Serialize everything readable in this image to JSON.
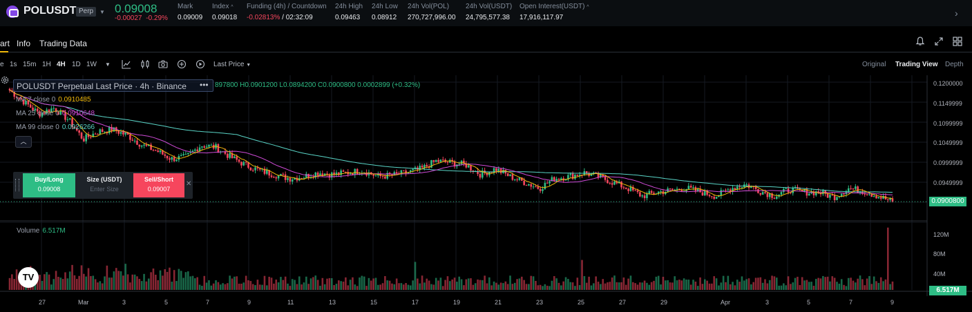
{
  "colors": {
    "up": "#2ebd85",
    "down": "#f6465d",
    "ma7": "#f0b90b",
    "ma25": "#d04bd8",
    "ma99": "#5ad6c8",
    "bg": "#000000"
  },
  "ticker": {
    "symbol": "POLUSDT",
    "badge": "Perp",
    "last_price": "0.09008",
    "change": "-0.00027",
    "change_pct": "-0.29%",
    "stats": [
      {
        "label": "Mark",
        "value": "0.09009",
        "has_caret": false
      },
      {
        "label": "Index",
        "value": "0.09018",
        "has_caret": true
      },
      {
        "label": "Funding (4h) / Countdown",
        "value_neg": "-0.02813%",
        "value": " / 02:32:09",
        "has_caret": false
      },
      {
        "label": "24h High",
        "value": "0.09463",
        "has_caret": false
      },
      {
        "label": "24h Low",
        "value": "0.08912",
        "has_caret": false
      },
      {
        "label": "24h Vol(POL)",
        "value": "270,727,996.00",
        "has_caret": false
      },
      {
        "label": "24h Vol(USDT)",
        "value": "24,795,577.38",
        "has_caret": false
      },
      {
        "label": "Open Interest(USDT)",
        "value": "17,916,117.97",
        "has_caret": true
      }
    ]
  },
  "subtabs": [
    "art",
    "Info",
    "Trading Data"
  ],
  "toolbar": {
    "timeframes": [
      "e",
      "1s",
      "15m",
      "1H",
      "4H",
      "1D",
      "1W"
    ],
    "active_timeframe": "4H",
    "price_type": "Last Price",
    "views": [
      "Original",
      "Trading View",
      "Depth"
    ],
    "active_view": "Trading View"
  },
  "legend": {
    "title": "POLUSDT Perpetual Last Price · 4h · Binance",
    "dots": "•••",
    "ohlc": "897800  H0.0901200  L0.0894200  C0.0900800  0.0002899 (+0.32%)",
    "ma": [
      {
        "label": "MA 7 close 0",
        "value": "0.0910485"
      },
      {
        "label": "MA 25 close 0",
        "value": "0.0910648"
      },
      {
        "label": "MA 99 close 0",
        "value": "0.0926266"
      }
    ]
  },
  "order_panel": {
    "buy_label": "Buy/Long",
    "buy_price": "0.09008",
    "size_label": "Size (USDT)",
    "size_placeholder": "Enter Size",
    "sell_label": "Sell/Short",
    "sell_price": "0.09007"
  },
  "volume": {
    "label": "Volume",
    "value": "6.517M"
  },
  "price_axis": [
    "0.1200000",
    "0.1149999",
    "0.1099999",
    "0.1049999",
    "0.0999999",
    "0.0949999"
  ],
  "current_price_tag": "0.0900800",
  "volume_axis": [
    "120M",
    "80M",
    "40M"
  ],
  "volume_tag": "6.517M",
  "date_axis": [
    "27",
    "Mar",
    "3",
    "5",
    "7",
    "9",
    "11",
    "13",
    "15",
    "17",
    "19",
    "21",
    "23",
    "25",
    "27",
    "29",
    "Apr",
    "3",
    "5",
    "7",
    "9"
  ],
  "tv_logo": "TV",
  "chart_data": {
    "type": "candlestick",
    "title": "POLUSDT Perpetual Last Price · 4h · Binance",
    "interval": "4h",
    "y_range": [
      0.085,
      0.122
    ],
    "volume_range_m": [
      0,
      140
    ],
    "anchor_closes": [
      0.1185,
      0.1155,
      0.1125,
      0.114,
      0.111,
      0.106,
      0.108,
      0.1085,
      0.107,
      0.1045,
      0.103,
      0.101,
      0.1015,
      0.1045,
      0.104,
      0.1015,
      0.0995,
      0.098,
      0.097,
      0.096,
      0.0965,
      0.0975,
      0.097,
      0.0975,
      0.098,
      0.0965,
      0.0968,
      0.0975,
      0.0985,
      0.1005,
      0.1,
      0.0995,
      0.097,
      0.0985,
      0.0965,
      0.095,
      0.0935,
      0.096,
      0.0965,
      0.0975,
      0.0965,
      0.095,
      0.0935,
      0.0915,
      0.0925,
      0.093,
      0.0935,
      0.0925,
      0.0915,
      0.0935,
      0.0945,
      0.0928,
      0.0915,
      0.0932,
      0.0925,
      0.0925,
      0.0912,
      0.0935,
      0.0928,
      0.0915,
      0.09
    ],
    "candle_count": 382,
    "ma_series": [
      "MA 7",
      "MA 25",
      "MA 99"
    ],
    "notable_volume_spikes_m": [
      129,
      62,
      58
    ]
  }
}
